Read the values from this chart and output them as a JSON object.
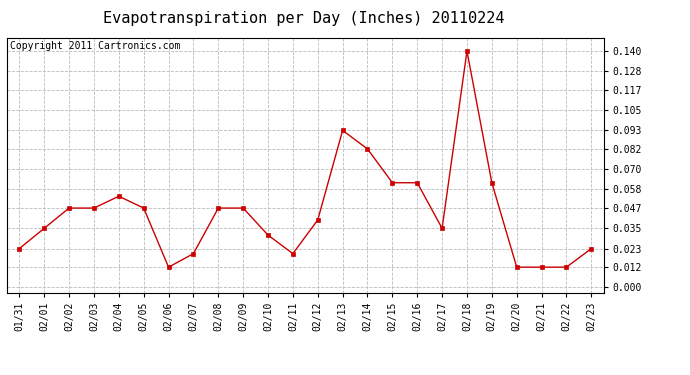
{
  "title": "Evapotranspiration per Day (Inches) 20110224",
  "copyright": "Copyright 2011 Cartronics.com",
  "x_labels": [
    "01/31",
    "02/01",
    "02/02",
    "02/03",
    "02/04",
    "02/05",
    "02/06",
    "02/07",
    "02/08",
    "02/09",
    "02/10",
    "02/11",
    "02/12",
    "02/13",
    "02/14",
    "02/15",
    "02/16",
    "02/17",
    "02/18",
    "02/19",
    "02/20",
    "02/21",
    "02/22",
    "02/23"
  ],
  "y_values": [
    0.023,
    0.035,
    0.047,
    0.047,
    0.054,
    0.047,
    0.012,
    0.02,
    0.047,
    0.047,
    0.031,
    0.02,
    0.04,
    0.093,
    0.082,
    0.062,
    0.062,
    0.035,
    0.14,
    0.062,
    0.012,
    0.012,
    0.012,
    0.023
  ],
  "y_ticks": [
    0.0,
    0.012,
    0.023,
    0.035,
    0.047,
    0.058,
    0.07,
    0.082,
    0.093,
    0.105,
    0.117,
    0.128,
    0.14
  ],
  "line_color": "#cc0000",
  "marker": "s",
  "marker_size": 3,
  "bg_color": "#ffffff",
  "grid_color": "#bbbbbb",
  "title_fontsize": 11,
  "copyright_fontsize": 7,
  "tick_fontsize": 7,
  "ylim": [
    -0.003,
    0.148
  ]
}
